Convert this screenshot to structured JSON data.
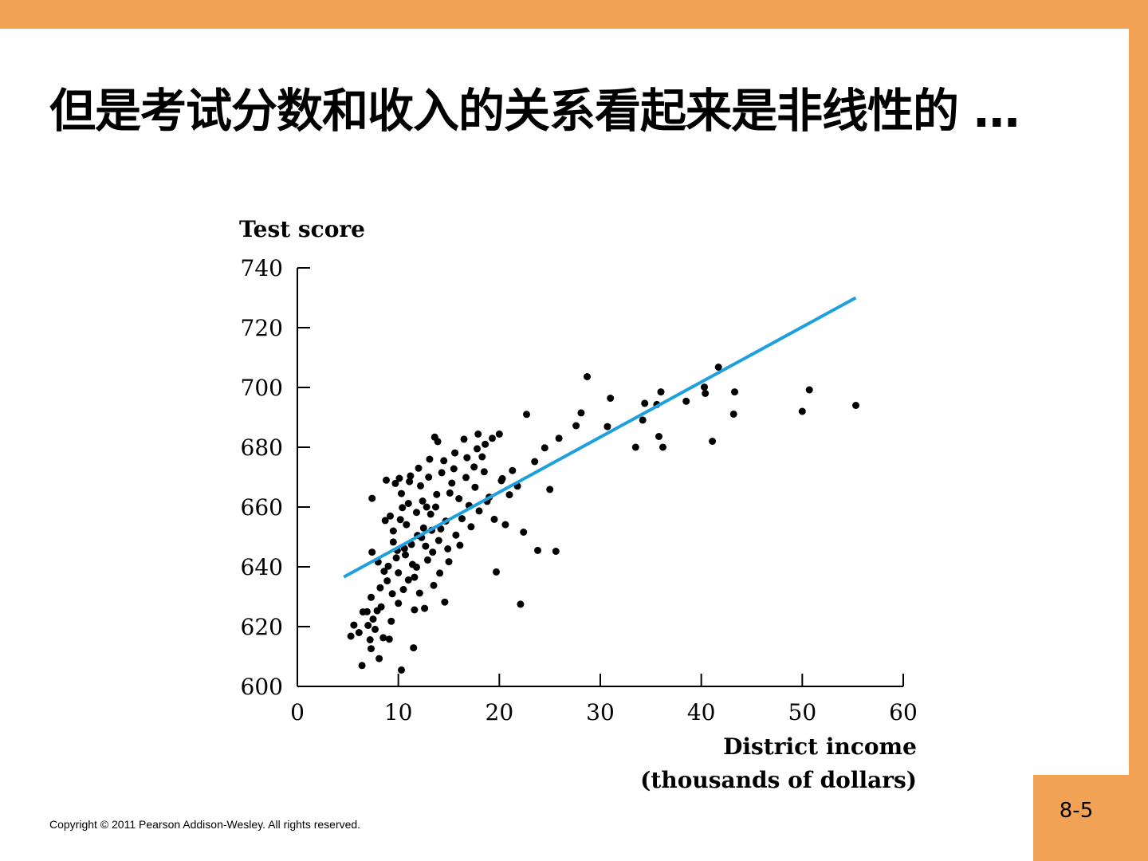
{
  "slide": {
    "title": "但是考试分数和收入的关系看起来是非线性的 …",
    "copyright": "Copyright © 2011 Pearson Addison-Wesley. All rights reserved.",
    "page_number": "8-5"
  },
  "colors": {
    "accent_bar": "#f2a255",
    "fit_line": "#1ea0e0",
    "points": "#000000"
  },
  "chart_data": {
    "type": "scatter",
    "ylabel": "Test score",
    "xlabel_line1": "District income",
    "xlabel_line2": "(thousands of dollars)",
    "xlim": [
      0,
      60
    ],
    "ylim": [
      600,
      740
    ],
    "xticks": [
      0,
      10,
      20,
      30,
      40,
      50,
      60
    ],
    "yticks": [
      600,
      620,
      640,
      660,
      680,
      700,
      720,
      740
    ],
    "fit_line": {
      "x": [
        4.6,
        55.3
      ],
      "y": [
        636.6,
        730.0
      ]
    },
    "points": [
      [
        5.3,
        616.8
      ],
      [
        5.6,
        620.5
      ],
      [
        6.1,
        618.0
      ],
      [
        6.4,
        607.0
      ],
      [
        6.5,
        624.9
      ],
      [
        6.9,
        625.0
      ],
      [
        7.0,
        620.4
      ],
      [
        7.2,
        615.6
      ],
      [
        7.3,
        612.6
      ],
      [
        7.3,
        629.8
      ],
      [
        7.4,
        644.9
      ],
      [
        7.4,
        662.9
      ],
      [
        7.5,
        622.5
      ],
      [
        7.7,
        619.1
      ],
      [
        7.9,
        625.3
      ],
      [
        8.0,
        641.6
      ],
      [
        8.1,
        609.3
      ],
      [
        8.3,
        626.6
      ],
      [
        8.5,
        616.3
      ],
      [
        8.7,
        655.5
      ],
      [
        8.8,
        669.0
      ],
      [
        9.1,
        615.8
      ],
      [
        9.3,
        621.8
      ],
      [
        9.5,
        652.0
      ],
      [
        9.7,
        667.9
      ],
      [
        9.8,
        643.0
      ],
      [
        10.0,
        638.0
      ],
      [
        10.1,
        669.6
      ],
      [
        10.3,
        605.5
      ],
      [
        10.4,
        659.8
      ],
      [
        10.6,
        646.1
      ],
      [
        10.8,
        654.1
      ],
      [
        11.0,
        635.6
      ],
      [
        11.2,
        670.4
      ],
      [
        11.4,
        640.8
      ],
      [
        11.5,
        612.9
      ],
      [
        11.6,
        625.6
      ],
      [
        11.8,
        658.2
      ],
      [
        12.0,
        673.0
      ],
      [
        12.3,
        649.8
      ],
      [
        12.6,
        626.1
      ],
      [
        12.8,
        660.0
      ],
      [
        13.1,
        676.0
      ],
      [
        13.4,
        644.9
      ],
      [
        13.6,
        683.4
      ],
      [
        13.9,
        681.9
      ],
      [
        14.2,
        652.7
      ],
      [
        14.6,
        628.2
      ],
      [
        15.1,
        664.7
      ],
      [
        15.6,
        678.1
      ],
      [
        16.1,
        647.2
      ],
      [
        16.5,
        682.7
      ],
      [
        17.0,
        660.5
      ],
      [
        17.5,
        673.4
      ],
      [
        17.9,
        684.4
      ],
      [
        18.3,
        676.8
      ],
      [
        18.8,
        661.9
      ],
      [
        19.3,
        683.0
      ],
      [
        19.7,
        638.3
      ],
      [
        20.0,
        684.4
      ],
      [
        20.3,
        669.5
      ],
      [
        20.6,
        654.1
      ],
      [
        21.3,
        672.2
      ],
      [
        21.8,
        667.0
      ],
      [
        22.1,
        627.5
      ],
      [
        22.4,
        651.6
      ],
      [
        22.7,
        691.0
      ],
      [
        23.5,
        675.2
      ],
      [
        23.8,
        645.5
      ],
      [
        24.5,
        679.8
      ],
      [
        25.0,
        665.9
      ],
      [
        25.6,
        645.2
      ],
      [
        25.9,
        683.0
      ],
      [
        27.6,
        687.2
      ],
      [
        28.1,
        691.5
      ],
      [
        28.7,
        703.6
      ],
      [
        30.7,
        686.9
      ],
      [
        31.0,
        696.4
      ],
      [
        33.5,
        680.0
      ],
      [
        34.2,
        689.1
      ],
      [
        34.4,
        694.7
      ],
      [
        35.6,
        694.3
      ],
      [
        35.8,
        683.6
      ],
      [
        36.0,
        698.5
      ],
      [
        36.2,
        680.0
      ],
      [
        38.5,
        695.4
      ],
      [
        40.3,
        700.1
      ],
      [
        40.4,
        698.0
      ],
      [
        41.1,
        682.0
      ],
      [
        41.7,
        706.8
      ],
      [
        43.2,
        691.1
      ],
      [
        43.3,
        698.5
      ],
      [
        50.0,
        692.0
      ],
      [
        50.7,
        699.2
      ],
      [
        55.3,
        694.0
      ],
      [
        9.0,
        640.2
      ],
      [
        9.5,
        648.3
      ],
      [
        10.2,
        655.8
      ],
      [
        10.5,
        632.4
      ],
      [
        11.0,
        661.2
      ],
      [
        11.3,
        647.5
      ],
      [
        11.8,
        639.9
      ],
      [
        12.2,
        667.1
      ],
      [
        12.5,
        653.0
      ],
      [
        12.9,
        642.3
      ],
      [
        13.2,
        657.6
      ],
      [
        13.5,
        633.8
      ],
      [
        13.8,
        664.2
      ],
      [
        14.0,
        648.8
      ],
      [
        14.3,
        671.5
      ],
      [
        14.7,
        655.3
      ],
      [
        15.0,
        641.7
      ],
      [
        15.3,
        668.0
      ],
      [
        15.7,
        650.6
      ],
      [
        16.0,
        662.8
      ],
      [
        16.3,
        656.1
      ],
      [
        16.7,
        669.9
      ],
      [
        17.2,
        653.4
      ],
      [
        17.6,
        666.6
      ],
      [
        18.0,
        658.7
      ],
      [
        18.5,
        671.8
      ],
      [
        19.0,
        663.3
      ],
      [
        19.5,
        655.9
      ],
      [
        20.2,
        668.8
      ],
      [
        21.0,
        664.1
      ],
      [
        8.9,
        635.3
      ],
      [
        9.4,
        631.0
      ],
      [
        10.0,
        627.8
      ],
      [
        10.7,
        644.0
      ],
      [
        11.6,
        636.5
      ],
      [
        12.1,
        631.2
      ],
      [
        12.7,
        646.9
      ],
      [
        13.3,
        652.2
      ],
      [
        14.1,
        637.9
      ],
      [
        14.9,
        646.0
      ],
      [
        9.2,
        657.0
      ],
      [
        10.3,
        664.5
      ],
      [
        11.1,
        668.5
      ],
      [
        12.4,
        662.0
      ],
      [
        13.0,
        670.0
      ],
      [
        14.5,
        675.5
      ],
      [
        15.5,
        672.8
      ],
      [
        16.8,
        676.5
      ],
      [
        17.8,
        679.5
      ],
      [
        18.6,
        681.0
      ],
      [
        8.2,
        633.0
      ],
      [
        8.6,
        638.5
      ],
      [
        9.9,
        645.5
      ],
      [
        11.9,
        650.5
      ],
      [
        13.7,
        660.0
      ]
    ]
  }
}
